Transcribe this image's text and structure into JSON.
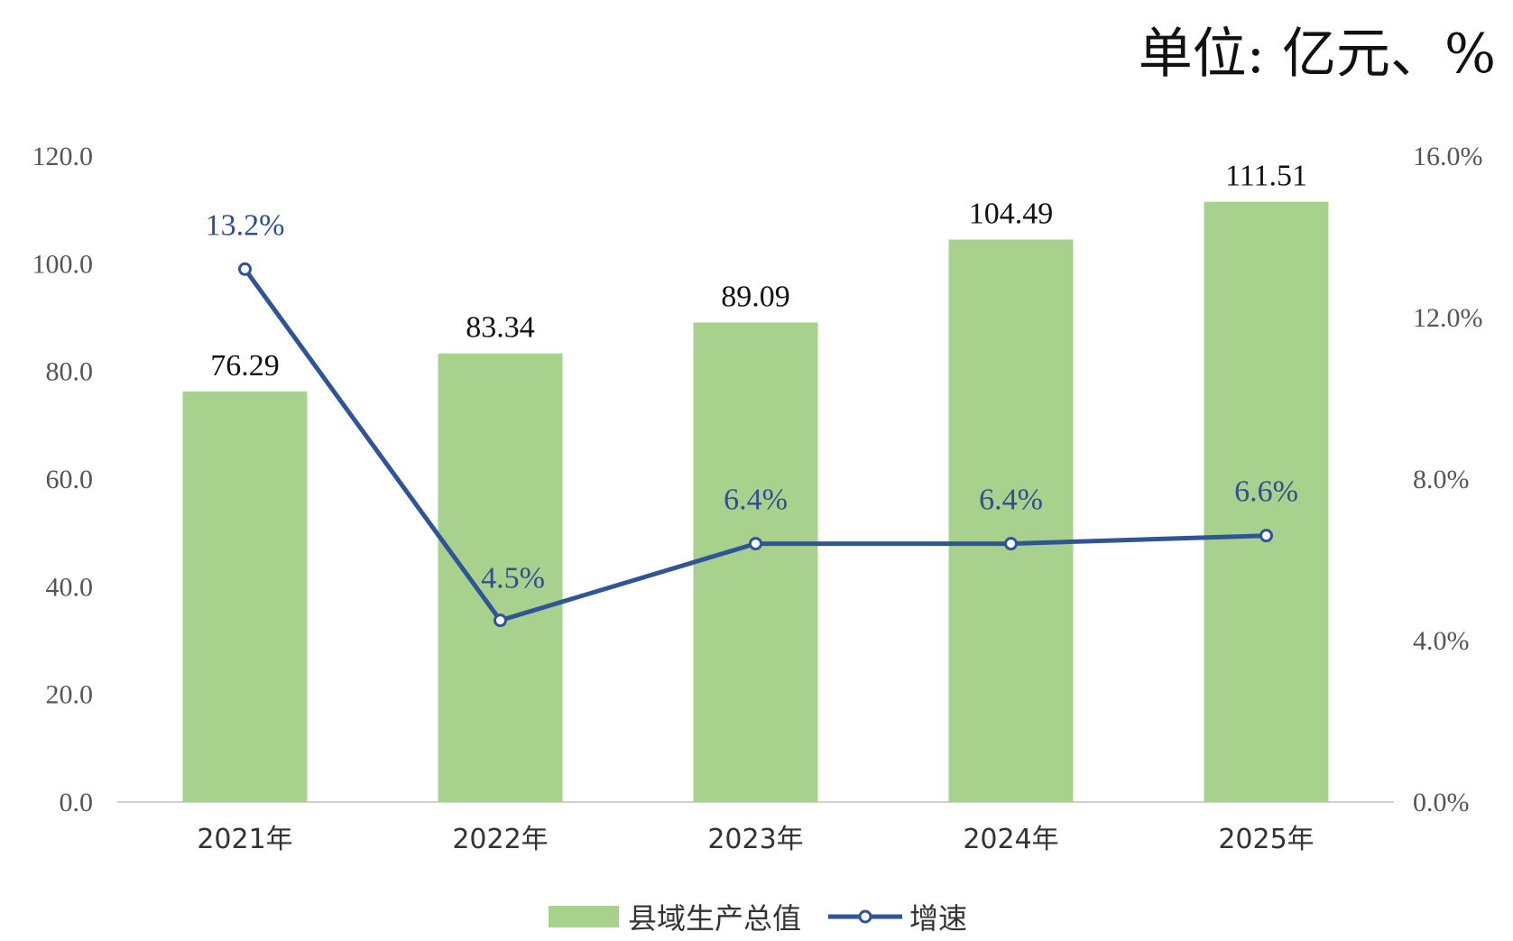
{
  "unit_label": "单位: 亿元、%",
  "chart_data": {
    "type": "bar",
    "categories": [
      "2021年",
      "2022年",
      "2023年",
      "2024年",
      "2025年"
    ],
    "series": [
      {
        "name": "县域生产总值",
        "type": "bar",
        "axis": "left",
        "values": [
          76.29,
          83.34,
          89.09,
          104.49,
          111.51
        ],
        "labels": [
          "76.29",
          "83.34",
          "89.09",
          "104.49",
          "111.51"
        ],
        "color": "#a9d18e"
      },
      {
        "name": "增速",
        "type": "line",
        "axis": "right",
        "values": [
          13.2,
          4.5,
          6.4,
          6.4,
          6.6
        ],
        "labels": [
          "13.2%",
          "4.5%",
          "6.4%",
          "6.4%",
          "6.6%"
        ],
        "color": "#2f5597"
      }
    ],
    "y_left": {
      "ylim": [
        0,
        120
      ],
      "ticks": [
        "0.0",
        "20.0",
        "40.0",
        "60.0",
        "80.0",
        "100.0",
        "120.0"
      ]
    },
    "y_right": {
      "ylim": [
        0,
        16
      ],
      "ticks": [
        "0.0%",
        "4.0%",
        "8.0%",
        "12.0%",
        "16.0%"
      ]
    },
    "grid": false,
    "legend": "bottom"
  }
}
